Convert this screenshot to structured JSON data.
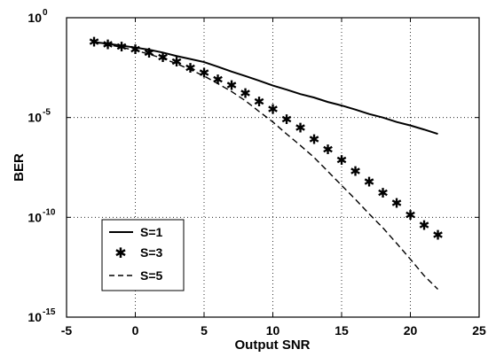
{
  "chart_data": {
    "type": "line",
    "xlabel": "Output SNR",
    "ylabel": "BER",
    "xlim": [
      -5,
      25
    ],
    "ylim": [
      1e-15,
      1
    ],
    "yscale": "log",
    "grid": true,
    "legend_position": "bottom-left",
    "x_ticks": [
      "-5",
      "0",
      "5",
      "10",
      "15",
      "20",
      "25"
    ],
    "y_ticks": [
      {
        "base": "10",
        "exp": "0"
      },
      {
        "base": "10",
        "exp": "-5"
      },
      {
        "base": "10",
        "exp": "-10"
      },
      {
        "base": "10",
        "exp": "-15"
      }
    ],
    "x": [
      -3,
      -2,
      -1,
      0,
      1,
      2,
      3,
      4,
      5,
      6,
      7,
      8,
      9,
      10,
      11,
      12,
      13,
      14,
      15,
      16,
      17,
      18,
      19,
      20,
      21,
      22
    ],
    "series": [
      {
        "name": "S=1",
        "style": "solid",
        "values": [
          0.06,
          0.05,
          0.04,
          0.032,
          0.025,
          0.018,
          0.012,
          0.0085,
          0.006,
          0.0035,
          0.002,
          0.0012,
          0.0007,
          0.0004,
          0.00025,
          0.00015,
          0.0001,
          6e-05,
          4e-05,
          2.5e-05,
          1.5e-05,
          1e-05,
          6e-06,
          4e-06,
          2.5e-06,
          1.5e-06
        ]
      },
      {
        "name": "S=3",
        "style": "marker",
        "values": [
          0.06,
          0.045,
          0.035,
          0.025,
          0.017,
          0.01,
          0.006,
          0.003,
          0.0017,
          0.0008,
          0.0004,
          0.00016,
          6e-05,
          2.5e-05,
          8e-06,
          3e-06,
          8e-07,
          2.5e-07,
          7e-08,
          2e-08,
          6e-09,
          1.6e-09,
          5e-10,
          1.3e-10,
          4e-11,
          1.3e-11
        ]
      },
      {
        "name": "S=5",
        "style": "dashed",
        "values": [
          0.06,
          0.045,
          0.033,
          0.023,
          0.015,
          0.009,
          0.005,
          0.0025,
          0.0012,
          0.0005,
          0.0002,
          7e-05,
          2e-05,
          6e-06,
          1.5e-06,
          4e-07,
          1e-07,
          2e-08,
          4e-09,
          8e-10,
          1.5e-10,
          3e-11,
          5e-12,
          8e-13,
          1.2e-13,
          2.5e-14
        ]
      }
    ]
  }
}
